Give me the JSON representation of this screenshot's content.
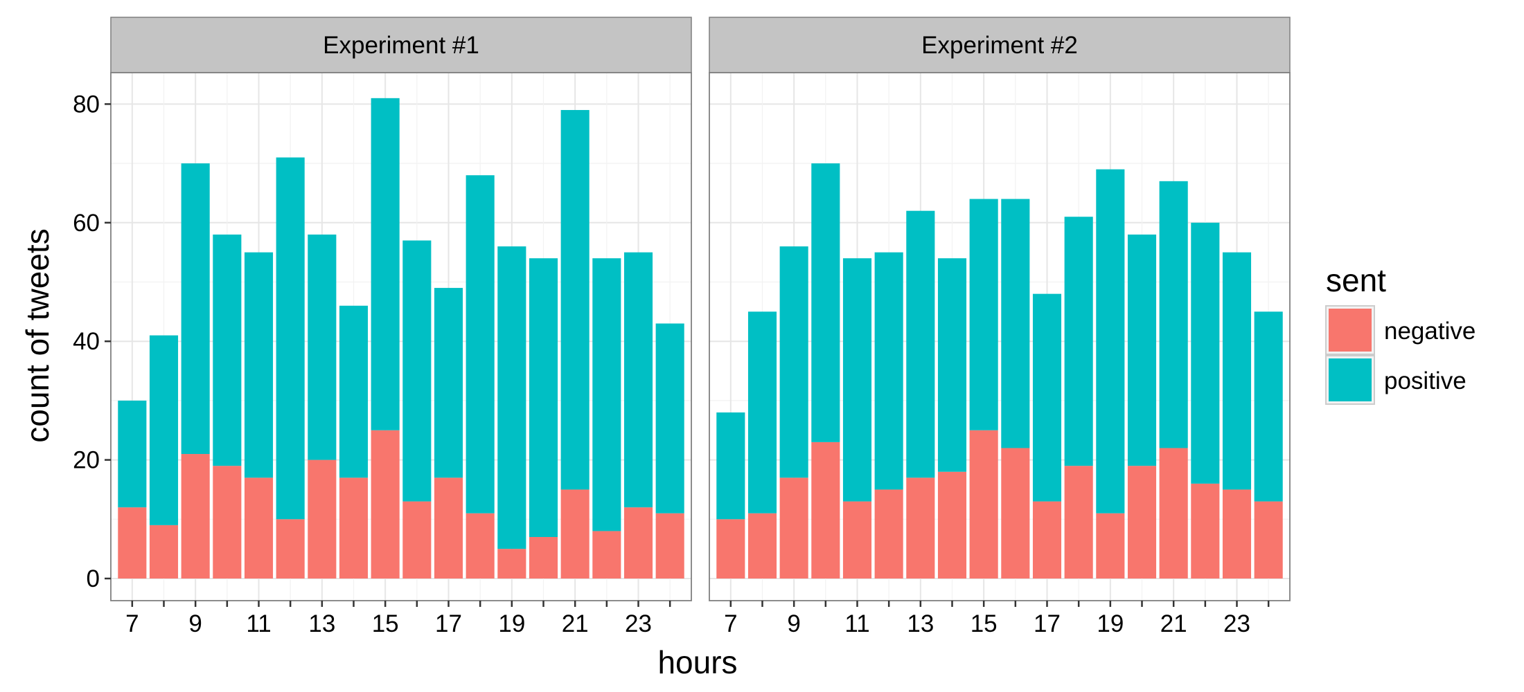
{
  "chart_data": {
    "type": "bar",
    "stacked": true,
    "xlabel": "hours",
    "ylabel": "count of tweets",
    "ylim": [
      0,
      90
    ],
    "yticks": [
      0,
      20,
      40,
      60,
      80
    ],
    "xticks": [
      7,
      9,
      11,
      13,
      15,
      17,
      19,
      21,
      23
    ],
    "x": [
      7,
      8,
      9,
      10,
      11,
      12,
      13,
      14,
      15,
      16,
      17,
      18,
      19,
      20,
      21,
      22,
      23,
      24
    ],
    "grid": true,
    "legend": {
      "title": "sent",
      "position": "right",
      "entries": [
        "negative",
        "positive"
      ]
    },
    "colors": {
      "negative": "#F8766D",
      "positive": "#00BFC4"
    },
    "facets": [
      {
        "title": "Experiment #1",
        "series": [
          {
            "name": "negative",
            "values": [
              12,
              9,
              21,
              19,
              17,
              10,
              20,
              17,
              25,
              13,
              17,
              11,
              5,
              7,
              15,
              8,
              12,
              11
            ]
          },
          {
            "name": "positive",
            "values": [
              18,
              32,
              49,
              39,
              38,
              61,
              38,
              29,
              56,
              44,
              32,
              57,
              51,
              47,
              64,
              46,
              43,
              32
            ]
          }
        ]
      },
      {
        "title": "Experiment #2",
        "series": [
          {
            "name": "negative",
            "values": [
              10,
              11,
              17,
              23,
              13,
              15,
              17,
              18,
              25,
              22,
              13,
              19,
              11,
              19,
              22,
              16,
              15,
              13
            ]
          },
          {
            "name": "positive",
            "values": [
              18,
              34,
              39,
              47,
              41,
              40,
              45,
              36,
              39,
              42,
              35,
              42,
              58,
              39,
              45,
              44,
              40,
              32
            ]
          }
        ]
      }
    ]
  }
}
